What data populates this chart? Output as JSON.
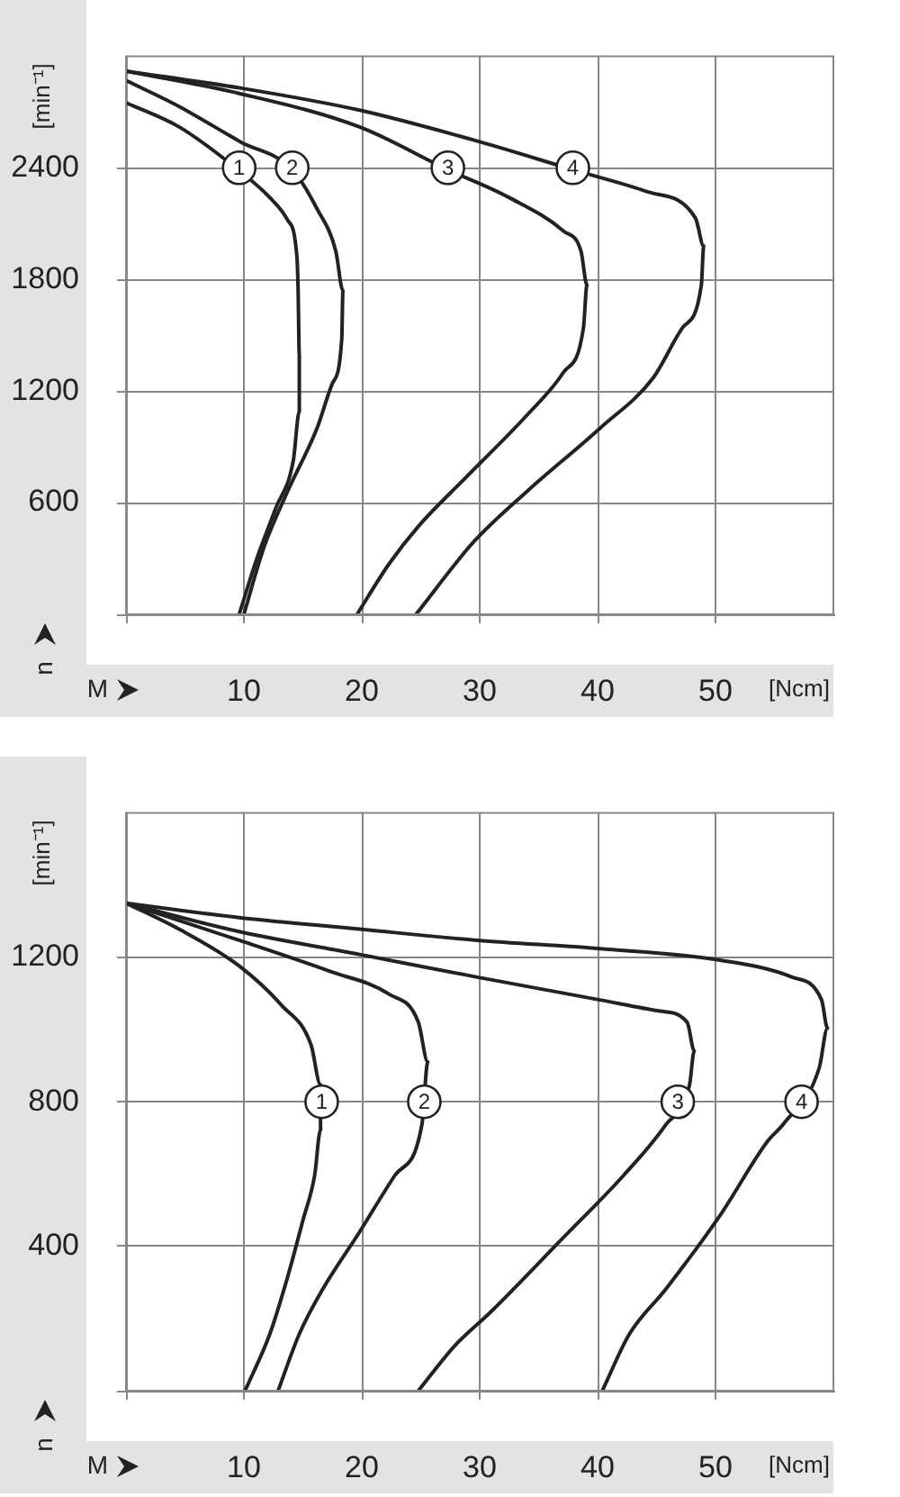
{
  "chart_data": [
    {
      "type": "line",
      "xlabel": "[Ncm]",
      "ylabel": "[min⁻¹]",
      "xlim": [
        0,
        60
      ],
      "ylim": [
        0,
        3000
      ],
      "xticks": [
        {
          "value": 0,
          "label": null
        },
        10,
        20,
        30,
        40,
        50
      ],
      "yticks": [
        {
          "value": 0,
          "label": null
        },
        600,
        1200,
        1800,
        2400
      ],
      "grid": true,
      "legend": false,
      "marker": "none",
      "line_style": "solid",
      "series": [
        {
          "color": "#222222",
          "x": [
            0,
            4.5,
            9.5,
            12.2,
            13.7,
            14.5,
            14.6,
            14.7,
            14.7,
            14.2,
            12.7,
            11.1,
            9.6
          ],
          "values": [
            2750,
            2620,
            2390,
            2240,
            2120,
            1920,
            1740,
            1390,
            1090,
            830,
            570,
            300,
            0
          ]
        },
        {
          "color": "#222222",
          "x": [
            0,
            4.5,
            9.7,
            14.1,
            16.2,
            17.8,
            18.4,
            18.3,
            17.5,
            16.2,
            13.7,
            11.7,
            10
          ],
          "values": [
            2870,
            2730,
            2540,
            2390,
            2180,
            1950,
            1740,
            1480,
            1240,
            1000,
            660,
            360,
            0
          ]
        },
        {
          "color": "#222222",
          "x": [
            0,
            9.6,
            19.8,
            27.3,
            32.5,
            37.1,
            38.6,
            39.1,
            38.8,
            37.1,
            34,
            28.9,
            24.9,
            22.3,
            19.6
          ],
          "values": [
            2920,
            2800,
            2620,
            2390,
            2240,
            2060,
            1950,
            1770,
            1540,
            1300,
            1070,
            740,
            480,
            270,
            0
          ]
        },
        {
          "color": "#222222",
          "x": [
            0,
            9.6,
            19.8,
            30,
            37.9,
            44.3,
            48.3,
            49,
            48.8,
            47.2,
            44.7,
            40.2,
            34,
            29.5,
            24.6
          ],
          "values": [
            2920,
            2830,
            2710,
            2540,
            2390,
            2270,
            2130,
            1980,
            1770,
            1540,
            1270,
            1000,
            660,
            390,
            0
          ]
        }
      ],
      "annotations": [
        {
          "text": "1",
          "x": 9.6,
          "y": 2400
        },
        {
          "text": "2",
          "x": 14.1,
          "y": 2400
        },
        {
          "text": "3",
          "x": 27.3,
          "y": 2400
        },
        {
          "text": "4",
          "x": 37.9,
          "y": 2400
        },
        "M",
        "n"
      ]
    },
    {
      "type": "line",
      "xlabel": "[Ncm]",
      "ylabel": "[min⁻¹]",
      "xlim": [
        0,
        60
      ],
      "ylim": [
        0,
        1600
      ],
      "xticks": [
        {
          "value": 0,
          "label": null
        },
        10,
        20,
        30,
        40,
        50
      ],
      "yticks": [
        {
          "value": 0,
          "label": null
        },
        400,
        800,
        1200
      ],
      "grid": true,
      "legend": false,
      "marker": "none",
      "line_style": "solid",
      "series": [
        {
          "color": "#222222",
          "x": [
            0,
            4.5,
            9.6,
            13.2,
            15.7,
            16.5,
            16.5,
            16,
            15,
            13.7,
            12.2,
            10.1
          ],
          "values": [
            1350,
            1278,
            1176,
            1067,
            957,
            847,
            722,
            596,
            471,
            314,
            157,
            0
          ]
        },
        {
          "color": "#222222",
          "x": [
            0,
            9.6,
            17.3,
            22.3,
            24.8,
            25.6,
            25.1,
            22.8,
            19.8,
            16.7,
            14.7,
            12.9
          ],
          "values": [
            1350,
            1247,
            1161,
            1098,
            1020,
            910,
            737,
            596,
            439,
            282,
            157,
            0
          ]
        },
        {
          "color": "#222222",
          "x": [
            0,
            9.6,
            19.8,
            29.8,
            40.2,
            45.3,
            47.6,
            48.2,
            47.8,
            45.8,
            42.2,
            37.1,
            31,
            27.9,
            24.8
          ],
          "values": [
            1350,
            1271,
            1208,
            1145,
            1082,
            1051,
            1020,
            941,
            847,
            737,
            596,
            424,
            220,
            125,
            0
          ]
        },
        {
          "color": "#222222",
          "x": [
            0,
            9.6,
            19.8,
            29.8,
            40.2,
            50.4,
            56.5,
            59,
            59.5,
            58.8,
            55.8,
            54.4,
            50.4,
            45.8,
            42.7,
            40.4
          ],
          "values": [
            1350,
            1310,
            1278,
            1247,
            1224,
            1192,
            1145,
            1082,
            1004,
            894,
            740,
            690,
            486,
            282,
            157,
            0
          ]
        }
      ],
      "annotations": [
        {
          "text": "1",
          "x": 16.6,
          "y": 800
        },
        {
          "text": "2",
          "x": 25.3,
          "y": 800
        },
        {
          "text": "3",
          "x": 46.8,
          "y": 800
        },
        {
          "text": "4",
          "x": 57.3,
          "y": 800
        },
        "M",
        "n"
      ]
    }
  ]
}
